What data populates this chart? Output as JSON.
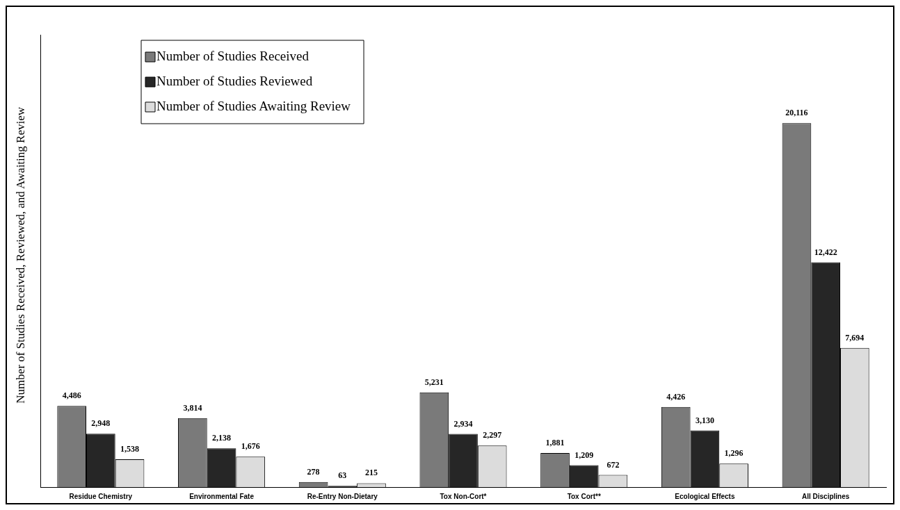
{
  "chart_data": {
    "type": "bar",
    "ylabel": "Number of Studies Received, Reviewed, and Awaiting Review",
    "categories": [
      "Residue Chemistry",
      "Environmental Fate",
      "Re-Entry Non-Dietary",
      "Tox Non-Cort*",
      "Tox Cort**",
      "Ecological Effects",
      "All Disciplines"
    ],
    "series": [
      {
        "name": "Number of Studies Received",
        "color": "#7a7a7a",
        "values": [
          4486,
          3814,
          278,
          5231,
          1881,
          4426,
          20116
        ],
        "value_labels": [
          "4,486",
          "3,814",
          "278",
          "5,231",
          "1,881",
          "4,426",
          "20,116"
        ]
      },
      {
        "name": "Number of Studies Reviewed",
        "color": "#262626",
        "values": [
          2948,
          2138,
          63,
          2934,
          1209,
          3130,
          12422
        ],
        "value_labels": [
          "2,948",
          "2,138",
          "63",
          "2,934",
          "1,209",
          "3,130",
          "12,422"
        ]
      },
      {
        "name": "Number of Studies Awaiting Review",
        "color": "#dcdcdc",
        "values": [
          1538,
          1676,
          215,
          2297,
          672,
          1296,
          7694
        ],
        "value_labels": [
          "1,538",
          "1,676",
          "215",
          "2,297",
          "672",
          "1,296",
          "7,694"
        ]
      }
    ],
    "grid": false,
    "legend": "top left"
  }
}
